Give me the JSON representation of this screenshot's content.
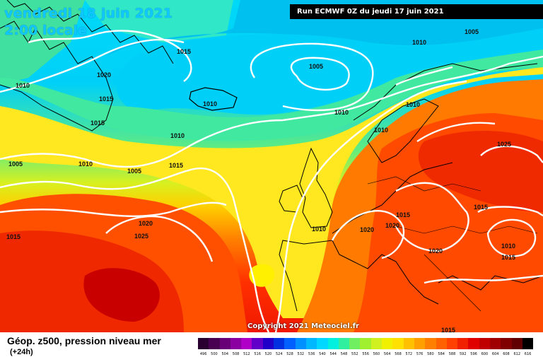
{
  "header": {
    "date": "vendredi 18 juin 2021",
    "time": "2:00 locale",
    "run": "Run ECMWF 0Z du jeudi 17 juin 2021"
  },
  "copyright": "Copyright 2021 Meteociel.fr",
  "legend": {
    "title": "Géop. z500, pression niveau mer",
    "subtitle": "(+24h)",
    "scale_labels": [
      "496",
      "500",
      "504",
      "508",
      "512",
      "516",
      "520",
      "524",
      "528",
      "532",
      "536",
      "540",
      "544",
      "548",
      "552",
      "556",
      "560",
      "564",
      "568",
      "572",
      "576",
      "580",
      "584",
      "588",
      "592",
      "596",
      "600",
      "604",
      "608",
      "612",
      "616"
    ],
    "scale_colors": [
      "#2a0030",
      "#4a0050",
      "#6a0078",
      "#8a00a0",
      "#b000c8",
      "#6000c8",
      "#2000c8",
      "#0030e0",
      "#0060ff",
      "#0090ff",
      "#00b8ff",
      "#00d8ff",
      "#00f0e0",
      "#30f0a0",
      "#70f060",
      "#a0f030",
      "#d0f020",
      "#f0f000",
      "#ffe000",
      "#ffc000",
      "#ffa000",
      "#ff8000",
      "#ff6000",
      "#ff4000",
      "#f02000",
      "#e00000",
      "#c00000",
      "#a00000",
      "#800000",
      "#600000",
      "#000000"
    ]
  },
  "isobars": [
    "1005",
    "1010",
    "1010",
    "1010",
    "1010",
    "1010",
    "1010",
    "1010",
    "1010",
    "1010",
    "1010",
    "1015",
    "1015",
    "1015",
    "1015",
    "1015",
    "1015",
    "1015",
    "1020",
    "1020",
    "1020",
    "1020",
    "1020",
    "1025",
    "1025",
    "1015",
    "1005",
    "1005",
    "1005",
    "1015"
  ],
  "colors": {
    "cold": "#00c8f0",
    "mid": "#ffe000",
    "warm": "#ff2000"
  }
}
